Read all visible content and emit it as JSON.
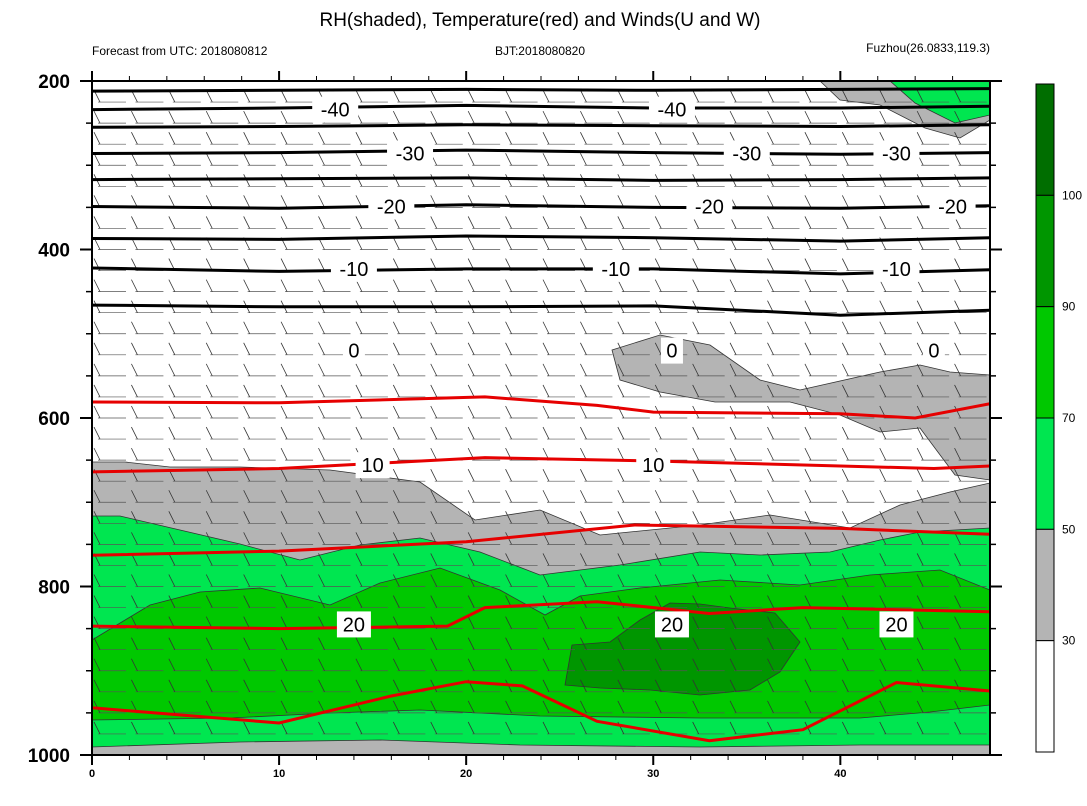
{
  "chart_data": {
    "type": "contour",
    "title": "RH(shaded), Temperature(red) and Winds(U and W)",
    "subtitle_left": "Forecast from UTC: 2018080812",
    "subtitle_center": "BJT:2018080820",
    "subtitle_right": "Fuzhou(26.0833,119.3)",
    "xlabel": "",
    "ylabel": "",
    "xlim": [
      0,
      48
    ],
    "ylim": [
      1000,
      200
    ],
    "x_ticks": [
      0,
      10,
      20,
      30,
      40
    ],
    "y_ticks": [
      200,
      400,
      600,
      800,
      1000
    ],
    "colorbar": {
      "levels": [
        30,
        50,
        70,
        90,
        100
      ],
      "colors": [
        "#ffffff",
        "#b4b4b4",
        "#00e650",
        "#00c800",
        "#009600",
        "#006e00"
      ]
    },
    "temperature_labels": [
      {
        "value": "-40",
        "x": [
          13,
          31
        ]
      },
      {
        "value": "-30",
        "x": [
          17,
          35,
          43
        ]
      },
      {
        "value": "-20",
        "x": [
          16,
          33,
          46
        ]
      },
      {
        "value": "-10",
        "x": [
          14,
          28,
          43
        ]
      },
      {
        "value": "0",
        "x": [
          14,
          31,
          45
        ]
      },
      {
        "value": "10",
        "x": [
          15,
          30
        ]
      },
      {
        "value": "20",
        "x": [
          14,
          31,
          43
        ]
      }
    ],
    "black_contours": [
      {
        "level": -45,
        "x": [
          0,
          10,
          20,
          30,
          40,
          48
        ],
        "p": [
          212,
          211,
          210,
          211,
          210,
          209
        ]
      },
      {
        "level": -40,
        "x": [
          0,
          10,
          20,
          30,
          40,
          48
        ],
        "p": [
          234,
          232,
          229,
          232,
          232,
          230
        ]
      },
      {
        "level": -35,
        "x": [
          0,
          10,
          20,
          30,
          40,
          48
        ],
        "p": [
          255,
          254,
          252,
          253,
          254,
          252
        ]
      },
      {
        "level": -30,
        "x": [
          0,
          10,
          20,
          30,
          40,
          48
        ],
        "p": [
          286,
          285,
          282,
          285,
          287,
          285
        ]
      },
      {
        "level": -25,
        "x": [
          0,
          10,
          20,
          30,
          40,
          48
        ],
        "p": [
          317,
          316,
          315,
          318,
          317,
          315
        ]
      },
      {
        "level": -20,
        "x": [
          0,
          10,
          20,
          30,
          40,
          48
        ],
        "p": [
          349,
          351,
          347,
          350,
          351,
          348
        ]
      },
      {
        "level": -15,
        "x": [
          0,
          10,
          20,
          30,
          40,
          48
        ],
        "p": [
          387,
          388,
          384,
          386,
          390,
          386
        ]
      },
      {
        "level": -10,
        "x": [
          0,
          10,
          20,
          30,
          40,
          48
        ],
        "p": [
          422,
          426,
          423,
          423,
          429,
          424
        ]
      },
      {
        "level": -5,
        "x": [
          0,
          10,
          20,
          30,
          40,
          48
        ],
        "p": [
          466,
          468,
          468,
          467,
          478,
          472
        ]
      }
    ],
    "red_contours": [
      {
        "level": 5,
        "x": [
          0,
          10,
          21,
          27,
          30,
          40,
          44,
          48
        ],
        "p": [
          581,
          582,
          575,
          585,
          593,
          595,
          600,
          583
        ]
      },
      {
        "level": 10,
        "x": [
          0,
          10,
          21,
          30,
          40,
          45,
          48
        ],
        "p": [
          664,
          660,
          647,
          651,
          657,
          660,
          657
        ]
      },
      {
        "level": 15,
        "x": [
          0,
          10,
          20,
          29,
          40,
          48
        ],
        "p": [
          763,
          758,
          747,
          727,
          731,
          738
        ]
      },
      {
        "level": 20,
        "x": [
          0,
          10,
          19,
          21,
          27,
          33,
          38,
          48
        ],
        "p": [
          847,
          850,
          847,
          825,
          818,
          832,
          825,
          830
        ]
      },
      {
        "level": 25,
        "x": [
          0,
          10,
          16,
          20,
          23,
          27,
          33,
          38,
          43,
          48
        ],
        "p": [
          944,
          962,
          930,
          913,
          918,
          960,
          983,
          970,
          914,
          924
        ]
      }
    ],
    "series": []
  }
}
